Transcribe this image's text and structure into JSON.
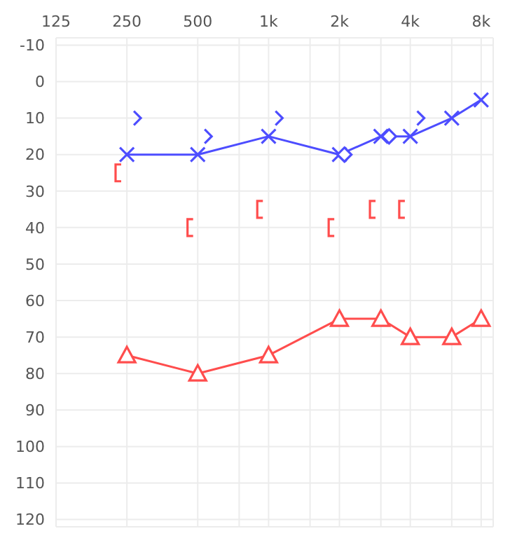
{
  "chart_data": {
    "type": "line",
    "xlim": [
      125,
      9000
    ],
    "log": "x",
    "ylim": [
      122,
      -12
    ],
    "xticks": [
      125,
      250,
      500,
      {
        "value": 750,
        "label": null
      },
      {
        "value": 1000,
        "label": "1k"
      },
      {
        "value": 1500,
        "label": null
      },
      {
        "value": 2000,
        "label": "2k"
      },
      {
        "value": 3000,
        "label": null
      },
      {
        "value": 4000,
        "label": "4k"
      },
      {
        "value": 6000,
        "label": null
      },
      {
        "value": 8000,
        "label": "8k"
      }
    ],
    "yticks": [
      -10,
      0,
      10,
      20,
      30,
      40,
      50,
      60,
      70,
      80,
      90,
      100,
      110,
      120
    ],
    "grid": true,
    "line_style": "solid",
    "series": [
      {
        "marker": "cross",
        "color": "#4d4dff",
        "x": [
          250,
          500,
          1000,
          2000,
          3000,
          4000,
          6000,
          8000
        ],
        "values": [
          20,
          20,
          15,
          20,
          15,
          15,
          10,
          5
        ]
      },
      {
        "type": "scatter",
        "marker": "diamond",
        "color": "#4d4dff",
        "x": [
          2100,
          3250
        ],
        "values": [
          20,
          15
        ]
      },
      {
        "type": "scatter",
        "color": "#4d4dff",
        "x": [
          275,
          550,
          1100,
          4400
        ],
        "values": [
          10,
          15,
          10,
          10
        ]
      },
      {
        "type": "scatter",
        "color": "#ff4d4d",
        "x": [
          230,
          465,
          920,
          1850,
          2770,
          3690
        ],
        "values": [
          25,
          40,
          35,
          40,
          35,
          35
        ]
      },
      {
        "marker": "triangle",
        "color": "#ff4d4d",
        "x": [
          250,
          500,
          1000,
          2000,
          3000,
          4000,
          6000,
          8000
        ],
        "values": [
          75,
          80,
          75,
          65,
          65,
          70,
          70,
          65
        ]
      }
    ]
  }
}
